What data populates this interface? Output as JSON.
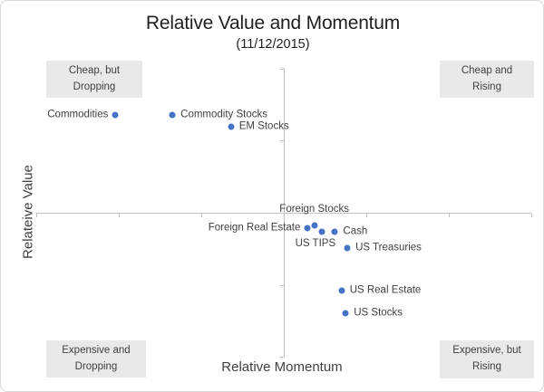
{
  "chart_data": {
    "type": "scatter",
    "title": "Relative Value and Momentum",
    "subtitle": "(11/12/2015)",
    "xlabel": "Relative Momentum",
    "ylabel": "Relateive Value",
    "x_range": [
      -3,
      3
    ],
    "y_range": [
      -2,
      2
    ],
    "x_tick_step": 1,
    "y_tick_step": 1,
    "tick_labels_shown": false,
    "grid": false,
    "legend": false,
    "marker_color": "#4472C4",
    "axis_color": "#BFBFBF",
    "text_color": "#3F3F3F",
    "quadrant_box_bg": "#E9E9E9",
    "points": [
      {
        "label": "Commodities",
        "x": -2.04,
        "y": 1.35,
        "label_side": "left"
      },
      {
        "label": "Commodity Stocks",
        "x": -1.35,
        "y": 1.35,
        "label_side": "right"
      },
      {
        "label": "EM Stocks",
        "x": -0.64,
        "y": 1.19,
        "label_side": "right"
      },
      {
        "label": "Foreign Stocks",
        "x": 0.37,
        "y": -0.18,
        "label_side": "above"
      },
      {
        "label": "Foreign Real Estate",
        "x": 0.29,
        "y": -0.21,
        "label_side": "left"
      },
      {
        "label": "US TIPS",
        "x": 0.46,
        "y": -0.26,
        "label_side": "below-left"
      },
      {
        "label": "Cash",
        "x": 0.62,
        "y": -0.26,
        "label_side": "right"
      },
      {
        "label": "US Treasuries",
        "x": 0.77,
        "y": -0.49,
        "label_side": "right"
      },
      {
        "label": "US Real Estate",
        "x": 0.7,
        "y": -1.08,
        "label_side": "right"
      },
      {
        "label": "US Stocks",
        "x": 0.75,
        "y": -1.39,
        "label_side": "right"
      }
    ],
    "quadrant_labels": [
      {
        "position": "top-left",
        "lines": [
          "Cheap, but",
          "Dropping"
        ]
      },
      {
        "position": "top-right",
        "lines": [
          "Cheap and",
          "Rising"
        ]
      },
      {
        "position": "bottom-left",
        "lines": [
          "Expensive and",
          "Dropping"
        ]
      },
      {
        "position": "bottom-right",
        "lines": [
          "Expensive, but",
          "Rising"
        ]
      }
    ]
  }
}
